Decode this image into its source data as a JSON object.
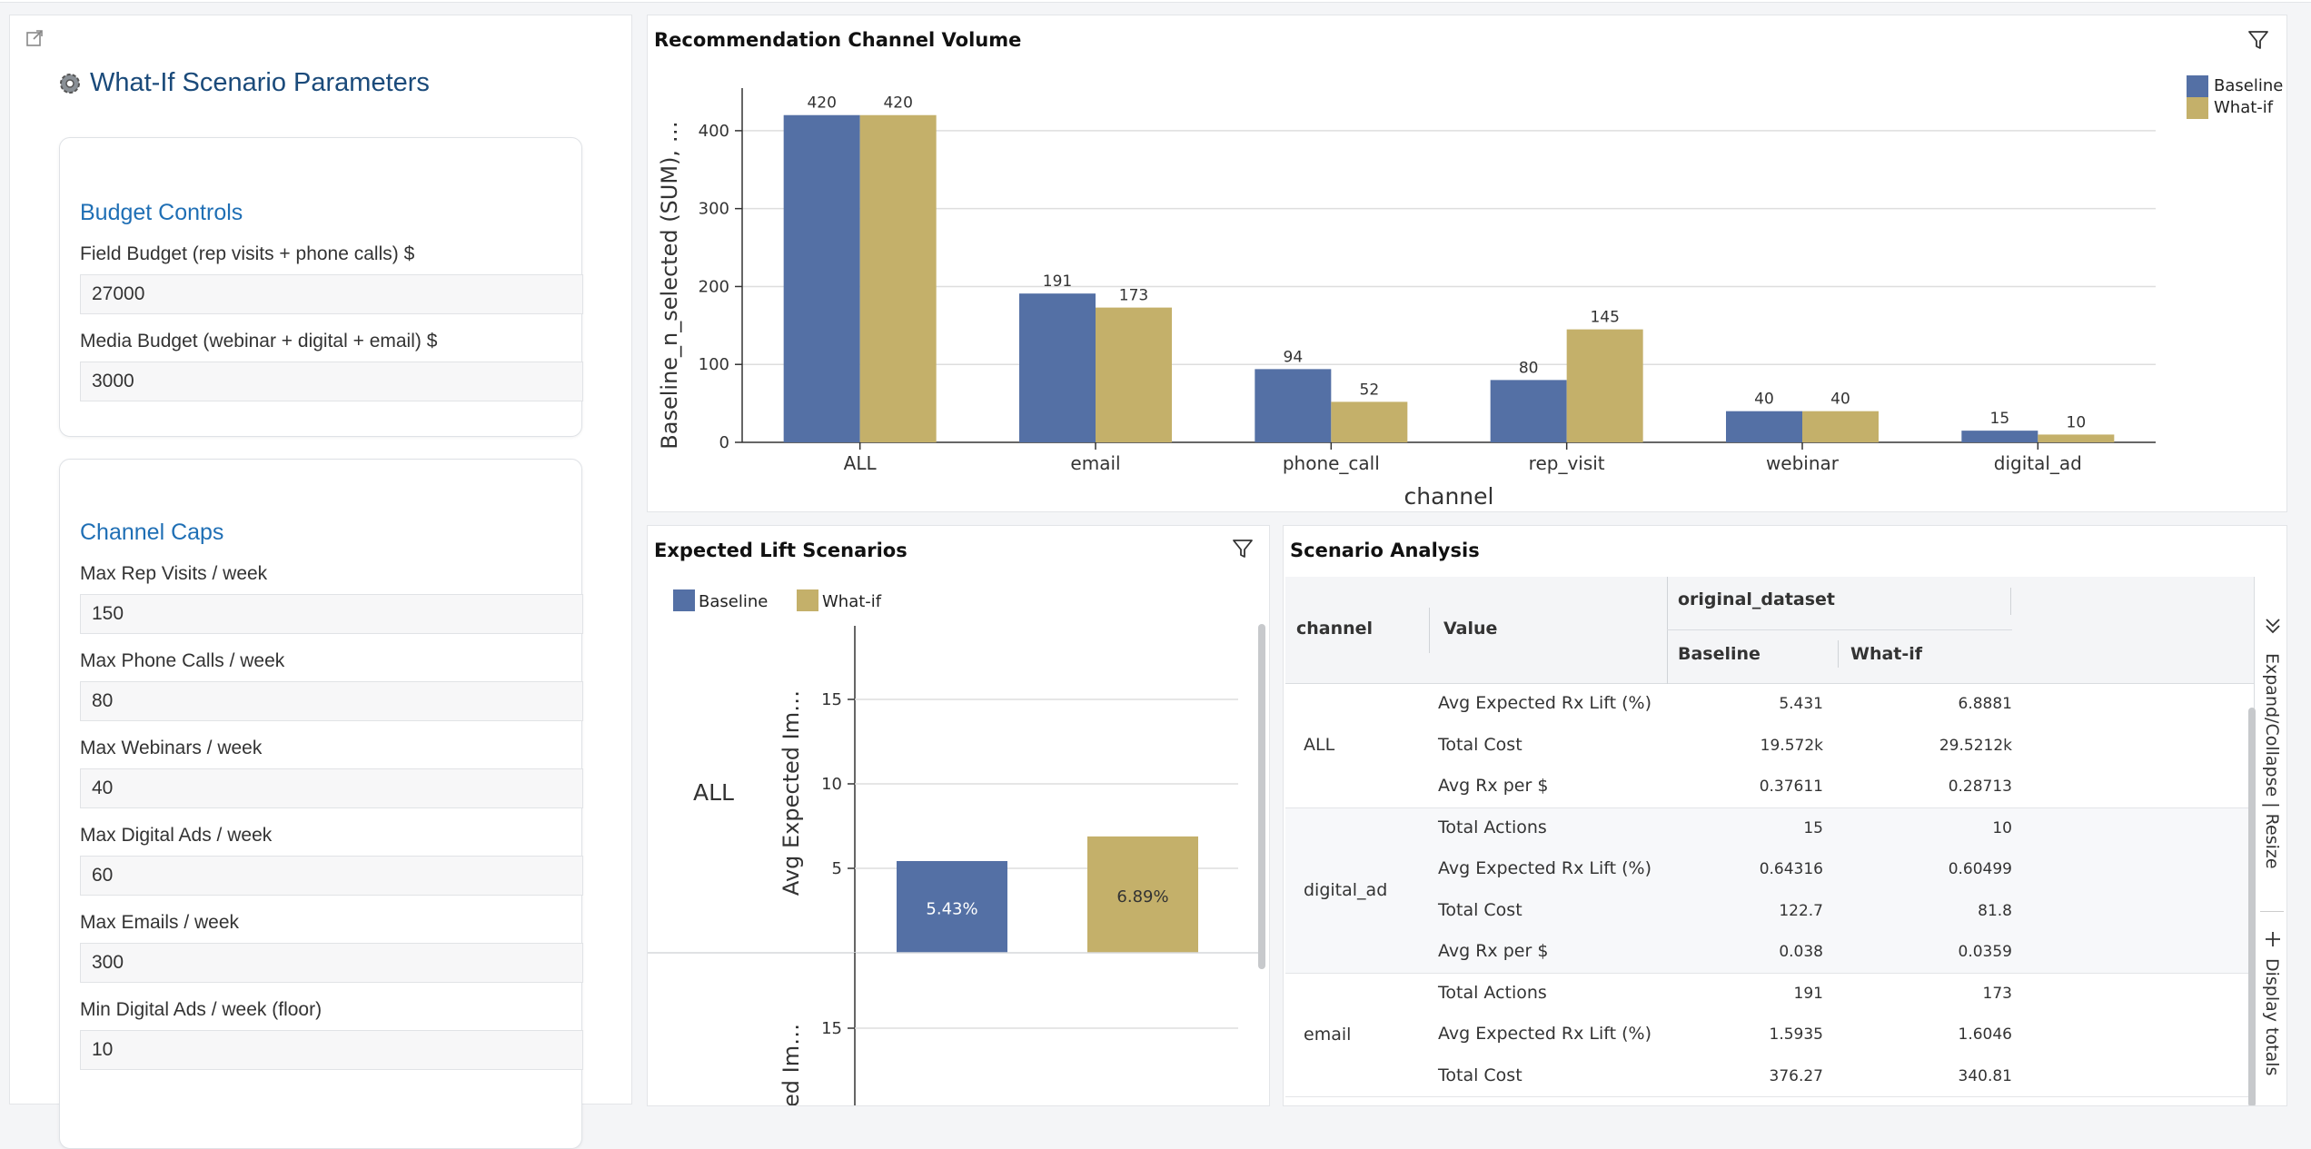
{
  "params": {
    "title": "What-If Scenario Parameters",
    "budget": {
      "title": "Budget Controls",
      "fields": [
        {
          "label": "Field Budget (rep visits + phone calls) $",
          "value": "27000"
        },
        {
          "label": "Media Budget (webinar + digital + email) $",
          "value": "3000"
        }
      ]
    },
    "caps": {
      "title": "Channel Caps",
      "fields": [
        {
          "label": "Max Rep Visits / week",
          "value": "150"
        },
        {
          "label": "Max Phone Calls / week",
          "value": "80"
        },
        {
          "label": "Max Webinars / week",
          "value": "40"
        },
        {
          "label": "Max Digital Ads / week",
          "value": "60"
        },
        {
          "label": "Max Emails / week",
          "value": "300"
        },
        {
          "label": "Min Digital Ads / week (floor)",
          "value": "10"
        }
      ]
    }
  },
  "volume_chart": {
    "title": "Recommendation Channel Volume",
    "legend": [
      "Baseline",
      "What-if"
    ]
  },
  "lift_chart": {
    "title": "Expected Lift Scenarios",
    "legend": [
      "Baseline",
      "What-if"
    ]
  },
  "analysis": {
    "title": "Scenario Analysis",
    "col_channel": "channel",
    "col_value": "Value",
    "group_header": "original_dataset",
    "col_baseline": "Baseline",
    "col_whatif": "What-if",
    "groups": [
      {
        "channel": "ALL",
        "rows": [
          {
            "metric": "Avg Expected Rx Lift (%)",
            "baseline": "5.431",
            "whatif": "6.8881"
          },
          {
            "metric": "Total Cost",
            "baseline": "19.572k",
            "whatif": "29.5212k"
          },
          {
            "metric": "Avg Rx per $",
            "baseline": "0.37611",
            "whatif": "0.28713"
          }
        ]
      },
      {
        "channel": "digital_ad",
        "rows": [
          {
            "metric": "Total Actions",
            "baseline": "15",
            "whatif": "10"
          },
          {
            "metric": "Avg Expected Rx Lift (%)",
            "baseline": "0.64316",
            "whatif": "0.60499"
          },
          {
            "metric": "Total Cost",
            "baseline": "122.7",
            "whatif": "81.8"
          },
          {
            "metric": "Avg Rx per $",
            "baseline": "0.038",
            "whatif": "0.0359"
          }
        ]
      },
      {
        "channel": "email",
        "rows": [
          {
            "metric": "Total Actions",
            "baseline": "191",
            "whatif": "173"
          },
          {
            "metric": "Avg Expected Rx Lift (%)",
            "baseline": "1.5935",
            "whatif": "1.6046"
          },
          {
            "metric": "Total Cost",
            "baseline": "376.27",
            "whatif": "340.81"
          }
        ]
      }
    ],
    "side_expand": "Expand/Collapse | Resize",
    "side_totals": "Display totals"
  },
  "colors": {
    "baseline": "#5470a5",
    "whatif": "#c4b06a",
    "title_blue": "#1a4a7a",
    "card_title": "#1f6fb5"
  },
  "chart_data": [
    {
      "type": "bar",
      "title": "Recommendation Channel Volume",
      "categories": [
        "ALL",
        "email",
        "phone_call",
        "rep_visit",
        "webinar",
        "digital_ad"
      ],
      "series": [
        {
          "name": "Baseline",
          "values": [
            420,
            191,
            94,
            80,
            40,
            15
          ]
        },
        {
          "name": "What-if",
          "values": [
            420,
            173,
            52,
            145,
            40,
            10
          ]
        }
      ],
      "xlabel": "channel",
      "ylabel": "Baseline_n_selected (SUM), …",
      "ylim": [
        0,
        450
      ],
      "yticks": [
        0,
        100,
        200,
        300,
        400
      ],
      "grid": true,
      "legend": "top-right"
    },
    {
      "type": "bar",
      "title": "Expected Lift Scenarios",
      "categories": [
        "ALL"
      ],
      "series": [
        {
          "name": "Baseline",
          "values": [
            5.431
          ],
          "labels": [
            "5.43%"
          ]
        },
        {
          "name": "What-if",
          "values": [
            6.8881
          ],
          "labels": [
            "6.89%"
          ]
        }
      ],
      "ylabel": "Avg Expected Im…",
      "ylabel2": "ed Im…",
      "yticks": [
        5,
        10,
        15
      ],
      "ylim": [
        0,
        19
      ],
      "legend": "top-left"
    }
  ]
}
